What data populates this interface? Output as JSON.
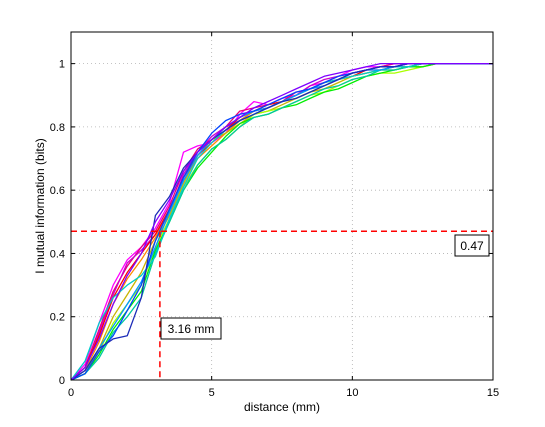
{
  "chart_data": {
    "type": "line",
    "xlabel": "distance (mm)",
    "ylabel": "I mutual information (bits)",
    "xlim": [
      0,
      15
    ],
    "ylim": [
      0,
      1.1
    ],
    "xticks": [
      0,
      5,
      10,
      15
    ],
    "yticks": [
      0,
      0.2,
      0.4,
      0.6,
      0.8,
      1
    ],
    "xtick_labels": [
      "0",
      "5",
      "10",
      "15"
    ],
    "ytick_labels": [
      "0",
      "0.2",
      "0.4",
      "0.6",
      "0.8",
      "1"
    ],
    "grid": true,
    "x": [
      0,
      0.5,
      1,
      1.5,
      2,
      2.5,
      3,
      3.5,
      4,
      4.5,
      5,
      5.5,
      6,
      6.5,
      7,
      7.5,
      8,
      8.5,
      9,
      9.5,
      10,
      10.5,
      11,
      11.5,
      12,
      12.5,
      13,
      13.5,
      14,
      14.5,
      15
    ],
    "series": [
      {
        "color": "#ff00ff",
        "values": [
          0,
          0.05,
          0.18,
          0.3,
          0.38,
          0.42,
          0.48,
          0.56,
          0.72,
          0.74,
          0.75,
          0.78,
          0.84,
          0.88,
          0.87,
          0.89,
          0.9,
          0.93,
          0.94,
          0.96,
          0.98,
          0.99,
          0.99,
          1.0,
          1.0,
          1.0,
          1.0,
          1.0,
          1.0,
          1.0,
          1.0
        ]
      },
      {
        "color": "#e8007a",
        "values": [
          0,
          0.04,
          0.16,
          0.28,
          0.36,
          0.42,
          0.47,
          0.55,
          0.66,
          0.73,
          0.76,
          0.8,
          0.85,
          0.86,
          0.87,
          0.88,
          0.91,
          0.92,
          0.93,
          0.95,
          0.97,
          0.98,
          0.99,
          1.0,
          1.0,
          1.0,
          1.0,
          1.0,
          1.0,
          1.0,
          1.0
        ]
      },
      {
        "color": "#cc00cc",
        "values": [
          0,
          0.03,
          0.15,
          0.27,
          0.37,
          0.41,
          0.46,
          0.53,
          0.65,
          0.72,
          0.77,
          0.8,
          0.82,
          0.85,
          0.86,
          0.88,
          0.9,
          0.93,
          0.95,
          0.96,
          0.97,
          0.98,
          0.99,
          0.99,
          1.0,
          1.0,
          1.0,
          1.0,
          1.0,
          1.0,
          1.0
        ]
      },
      {
        "color": "#ff0000",
        "values": [
          0,
          0.04,
          0.14,
          0.26,
          0.34,
          0.4,
          0.46,
          0.54,
          0.64,
          0.71,
          0.75,
          0.79,
          0.83,
          0.85,
          0.87,
          0.88,
          0.9,
          0.92,
          0.94,
          0.95,
          0.96,
          0.98,
          0.98,
          0.99,
          0.99,
          1.0,
          1.0,
          1.0,
          1.0,
          1.0,
          1.0
        ]
      },
      {
        "color": "#ff8c00",
        "values": [
          0,
          0.03,
          0.12,
          0.24,
          0.32,
          0.38,
          0.45,
          0.53,
          0.63,
          0.7,
          0.74,
          0.78,
          0.82,
          0.85,
          0.86,
          0.88,
          0.89,
          0.91,
          0.93,
          0.95,
          0.96,
          0.97,
          0.98,
          0.99,
          0.99,
          0.99,
          1.0,
          1.0,
          1.0,
          1.0,
          1.0
        ]
      },
      {
        "color": "#c8b400",
        "values": [
          0,
          0.02,
          0.1,
          0.2,
          0.27,
          0.34,
          0.44,
          0.52,
          0.62,
          0.71,
          0.76,
          0.78,
          0.81,
          0.84,
          0.85,
          0.87,
          0.89,
          0.91,
          0.92,
          0.94,
          0.96,
          0.97,
          0.98,
          0.98,
          0.99,
          1.0,
          1.0,
          1.0,
          1.0,
          1.0,
          1.0
        ]
      },
      {
        "color": "#aaff00",
        "values": [
          0,
          0.02,
          0.09,
          0.18,
          0.24,
          0.3,
          0.42,
          0.51,
          0.61,
          0.68,
          0.73,
          0.76,
          0.8,
          0.84,
          0.85,
          0.86,
          0.88,
          0.9,
          0.91,
          0.93,
          0.95,
          0.96,
          0.97,
          0.97,
          0.98,
          0.99,
          1.0,
          1.0,
          1.0,
          1.0,
          1.0
        ]
      },
      {
        "color": "#00ee00",
        "values": [
          0,
          0.02,
          0.08,
          0.16,
          0.22,
          0.28,
          0.41,
          0.5,
          0.6,
          0.67,
          0.72,
          0.77,
          0.81,
          0.83,
          0.84,
          0.86,
          0.87,
          0.89,
          0.91,
          0.92,
          0.94,
          0.96,
          0.97,
          0.98,
          0.99,
          0.99,
          1.0,
          1.0,
          1.0,
          1.0,
          1.0
        ]
      },
      {
        "color": "#00c8a0",
        "values": [
          0,
          0.02,
          0.07,
          0.15,
          0.2,
          0.26,
          0.4,
          0.5,
          0.6,
          0.68,
          0.73,
          0.76,
          0.8,
          0.83,
          0.84,
          0.86,
          0.88,
          0.9,
          0.92,
          0.93,
          0.95,
          0.96,
          0.98,
          0.98,
          0.99,
          1.0,
          1.0,
          1.0,
          1.0,
          1.0,
          1.0
        ]
      },
      {
        "color": "#00cccc",
        "values": [
          0,
          0.06,
          0.18,
          0.26,
          0.3,
          0.33,
          0.39,
          0.51,
          0.61,
          0.7,
          0.75,
          0.79,
          0.82,
          0.84,
          0.86,
          0.88,
          0.9,
          0.92,
          0.94,
          0.95,
          0.96,
          0.97,
          0.98,
          0.99,
          0.99,
          1.0,
          1.0,
          1.0,
          1.0,
          1.0,
          1.0
        ]
      },
      {
        "color": "#0099ff",
        "values": [
          0,
          0.03,
          0.1,
          0.17,
          0.24,
          0.31,
          0.42,
          0.53,
          0.63,
          0.71,
          0.76,
          0.8,
          0.83,
          0.85,
          0.86,
          0.88,
          0.9,
          0.92,
          0.93,
          0.95,
          0.97,
          0.98,
          0.98,
          0.99,
          1.0,
          1.0,
          1.0,
          1.0,
          1.0,
          1.0,
          1.0
        ]
      },
      {
        "color": "#0044ff",
        "values": [
          0,
          0.02,
          0.09,
          0.14,
          0.22,
          0.3,
          0.44,
          0.54,
          0.64,
          0.72,
          0.78,
          0.82,
          0.84,
          0.85,
          0.87,
          0.89,
          0.91,
          0.92,
          0.94,
          0.96,
          0.97,
          0.98,
          0.99,
          0.99,
          1.0,
          1.0,
          1.0,
          1.0,
          1.0,
          1.0,
          1.0
        ]
      },
      {
        "color": "#1c2bb8",
        "values": [
          0,
          0.03,
          0.1,
          0.13,
          0.14,
          0.26,
          0.52,
          0.58,
          0.67,
          0.72,
          0.76,
          0.79,
          0.82,
          0.84,
          0.86,
          0.88,
          0.89,
          0.91,
          0.93,
          0.95,
          0.97,
          0.98,
          0.99,
          0.99,
          1.0,
          1.0,
          1.0,
          1.0,
          1.0,
          1.0,
          1.0
        ]
      },
      {
        "color": "#7f00ff",
        "values": [
          0,
          0.04,
          0.13,
          0.24,
          0.33,
          0.4,
          0.5,
          0.57,
          0.66,
          0.72,
          0.76,
          0.8,
          0.83,
          0.86,
          0.88,
          0.9,
          0.92,
          0.94,
          0.96,
          0.97,
          0.98,
          0.99,
          1.0,
          1.0,
          1.0,
          1.0,
          1.0,
          1.0,
          1.0,
          1.0,
          1.0
        ]
      }
    ],
    "reference_lines": {
      "color": "#ff0000",
      "horizontal_y": 0.47,
      "vertical_x": 3.16
    },
    "annotations": [
      {
        "text": "0.47"
      },
      {
        "text": "3.16 mm"
      }
    ]
  }
}
